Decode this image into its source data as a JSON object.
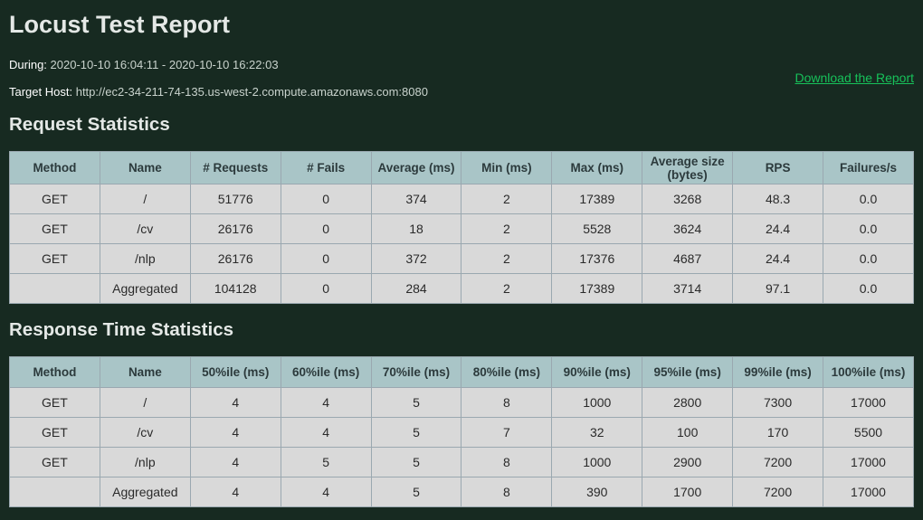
{
  "title": "Locust Test Report",
  "during": {
    "label": "During:",
    "value": "2020-10-10 16:04:11 - 2020-10-10 16:22:03"
  },
  "target_host": {
    "label": "Target Host:",
    "value": "http://ec2-34-211-74-135.us-west-2.compute.amazonaws.com:8080"
  },
  "download_link": "Download the Report",
  "request_stats": {
    "heading": "Request Statistics",
    "columns": [
      "Method",
      "Name",
      "# Requests",
      "# Fails",
      "Average (ms)",
      "Min (ms)",
      "Max (ms)",
      "Average size (bytes)",
      "RPS",
      "Failures/s"
    ],
    "rows": [
      [
        "GET",
        "/",
        "51776",
        "0",
        "374",
        "2",
        "17389",
        "3268",
        "48.3",
        "0.0"
      ],
      [
        "GET",
        "/cv",
        "26176",
        "0",
        "18",
        "2",
        "5528",
        "3624",
        "24.4",
        "0.0"
      ],
      [
        "GET",
        "/nlp",
        "26176",
        "0",
        "372",
        "2",
        "17376",
        "4687",
        "24.4",
        "0.0"
      ],
      [
        "",
        "Aggregated",
        "104128",
        "0",
        "284",
        "2",
        "17389",
        "3714",
        "97.1",
        "0.0"
      ]
    ]
  },
  "response_stats": {
    "heading": "Response Time Statistics",
    "columns": [
      "Method",
      "Name",
      "50%ile (ms)",
      "60%ile (ms)",
      "70%ile (ms)",
      "80%ile (ms)",
      "90%ile (ms)",
      "95%ile (ms)",
      "99%ile (ms)",
      "100%ile (ms)"
    ],
    "rows": [
      [
        "GET",
        "/",
        "4",
        "4",
        "5",
        "8",
        "1000",
        "2800",
        "7300",
        "17000"
      ],
      [
        "GET",
        "/cv",
        "4",
        "4",
        "5",
        "7",
        "32",
        "100",
        "170",
        "5500"
      ],
      [
        "GET",
        "/nlp",
        "4",
        "5",
        "5",
        "8",
        "1000",
        "2900",
        "7200",
        "17000"
      ],
      [
        "",
        "Aggregated",
        "4",
        "4",
        "5",
        "8",
        "390",
        "1700",
        "7200",
        "17000"
      ]
    ]
  }
}
